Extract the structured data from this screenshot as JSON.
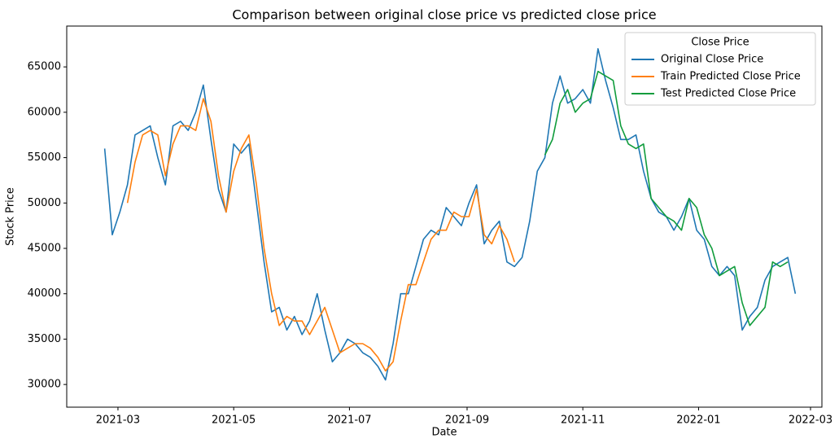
{
  "chart_data": {
    "type": "line",
    "title": "Comparison between original close price vs predicted close price",
    "x_label": "Date",
    "y_label": "Stock Price",
    "legend_title": "Close Price",
    "legend_position": "upper right",
    "x": [
      "2021-02-22",
      "2021-02-26",
      "2021-03-02",
      "2021-03-06",
      "2021-03-10",
      "2021-03-14",
      "2021-03-18",
      "2021-03-22",
      "2021-03-26",
      "2021-03-30",
      "2021-04-03",
      "2021-04-07",
      "2021-04-11",
      "2021-04-15",
      "2021-04-19",
      "2021-04-23",
      "2021-04-27",
      "2021-05-01",
      "2021-05-05",
      "2021-05-09",
      "2021-05-13",
      "2021-05-17",
      "2021-05-21",
      "2021-05-25",
      "2021-05-29",
      "2021-06-02",
      "2021-06-06",
      "2021-06-10",
      "2021-06-14",
      "2021-06-18",
      "2021-06-22",
      "2021-06-26",
      "2021-06-30",
      "2021-07-04",
      "2021-07-08",
      "2021-07-12",
      "2021-07-16",
      "2021-07-20",
      "2021-07-24",
      "2021-07-28",
      "2021-08-01",
      "2021-08-05",
      "2021-08-09",
      "2021-08-13",
      "2021-08-17",
      "2021-08-21",
      "2021-08-25",
      "2021-08-29",
      "2021-09-02",
      "2021-09-06",
      "2021-09-10",
      "2021-09-14",
      "2021-09-18",
      "2021-09-22",
      "2021-09-26",
      "2021-09-30",
      "2021-10-04",
      "2021-10-08",
      "2021-10-12",
      "2021-10-16",
      "2021-10-20",
      "2021-10-24",
      "2021-10-28",
      "2021-11-01",
      "2021-11-05",
      "2021-11-09",
      "2021-11-13",
      "2021-11-17",
      "2021-11-21",
      "2021-11-25",
      "2021-11-29",
      "2021-12-03",
      "2021-12-07",
      "2021-12-11",
      "2021-12-15",
      "2021-12-19",
      "2021-12-23",
      "2021-12-27",
      "2021-12-31",
      "2022-01-04",
      "2022-01-08",
      "2022-01-12",
      "2022-01-16",
      "2022-01-20",
      "2022-01-24",
      "2022-01-28",
      "2022-02-01",
      "2022-02-05",
      "2022-02-09",
      "2022-02-13",
      "2022-02-17",
      "2022-02-21"
    ],
    "series": [
      {
        "name": "Original Close Price",
        "color": "#1f77b4",
        "values": [
          56000,
          46500,
          49000,
          52000,
          57500,
          58000,
          58500,
          55000,
          52000,
          58500,
          59000,
          58000,
          60000,
          63000,
          57000,
          51500,
          49000,
          56500,
          55500,
          56500,
          50000,
          43500,
          38000,
          38500,
          36000,
          37500,
          35500,
          37000,
          40000,
          36000,
          32500,
          33500,
          35000,
          34500,
          33500,
          33000,
          32000,
          30500,
          34500,
          40000,
          40000,
          43000,
          46000,
          47000,
          46500,
          49500,
          48500,
          47500,
          50000,
          52000,
          45500,
          47000,
          48000,
          43500,
          43000,
          44000,
          48000,
          53500,
          55000,
          61000,
          64000,
          61000,
          61500,
          62500,
          61000,
          67000,
          63500,
          60500,
          57000,
          57000,
          57500,
          53500,
          50500,
          49000,
          48500,
          47000,
          48500,
          50500,
          47000,
          46000,
          43000,
          42000,
          43000,
          42000,
          36000,
          37500,
          38500,
          41500,
          43000,
          43500,
          44000,
          40000
        ]
      },
      {
        "name": "Train Predicted Close Price",
        "color": "#ff7f0e",
        "values": [
          null,
          null,
          null,
          50000,
          54500,
          57500,
          58000,
          57500,
          53000,
          56500,
          58500,
          58500,
          58000,
          61500,
          59000,
          53000,
          49000,
          53500,
          56000,
          57500,
          52000,
          45000,
          40000,
          36500,
          37500,
          37000,
          37000,
          35500,
          37000,
          38500,
          36000,
          33500,
          34000,
          34500,
          34500,
          34000,
          33000,
          31500,
          32500,
          37000,
          41000,
          41000,
          43500,
          46000,
          47000,
          47000,
          49000,
          48500,
          48500,
          51500,
          46500,
          45500,
          47500,
          46000,
          43500,
          null,
          null,
          null,
          null,
          null,
          null,
          null,
          null,
          null,
          null,
          null,
          null,
          null,
          null,
          null,
          null,
          null,
          null,
          null,
          null,
          null,
          null,
          null,
          null,
          null,
          null,
          null,
          null,
          null,
          null,
          null,
          null,
          null,
          null,
          null,
          null,
          null
        ]
      },
      {
        "name": "Test Predicted Close Price",
        "color": "#109c3c",
        "values": [
          null,
          null,
          null,
          null,
          null,
          null,
          null,
          null,
          null,
          null,
          null,
          null,
          null,
          null,
          null,
          null,
          null,
          null,
          null,
          null,
          null,
          null,
          null,
          null,
          null,
          null,
          null,
          null,
          null,
          null,
          null,
          null,
          null,
          null,
          null,
          null,
          null,
          null,
          null,
          null,
          null,
          null,
          null,
          null,
          null,
          null,
          null,
          null,
          null,
          null,
          null,
          null,
          null,
          null,
          null,
          null,
          null,
          null,
          55300,
          57000,
          61000,
          62500,
          60000,
          61000,
          61500,
          64500,
          64000,
          63500,
          58500,
          56500,
          56000,
          56500,
          50500,
          49500,
          48500,
          48000,
          47000,
          50500,
          49500,
          46500,
          45000,
          42000,
          42500,
          43000,
          39000,
          36500,
          37500,
          38500,
          43500,
          43000,
          43500,
          null
        ]
      }
    ],
    "xlim": [
      "2021-02-02",
      "2022-03-07"
    ],
    "xticks": [
      {
        "value": "2021-03-01",
        "label": "2021-03"
      },
      {
        "value": "2021-05-01",
        "label": "2021-05"
      },
      {
        "value": "2021-07-01",
        "label": "2021-07"
      },
      {
        "value": "2021-09-01",
        "label": "2021-09"
      },
      {
        "value": "2021-11-01",
        "label": "2021-11"
      },
      {
        "value": "2022-01-01",
        "label": "2022-01"
      },
      {
        "value": "2022-03-01",
        "label": "2022-03"
      }
    ],
    "ylim": [
      27500,
      69500
    ],
    "yticks": [
      30000,
      35000,
      40000,
      45000,
      50000,
      55000,
      60000,
      65000
    ],
    "grid": false
  }
}
